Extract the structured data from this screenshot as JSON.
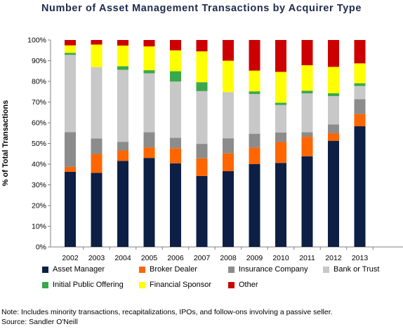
{
  "title": "Number of Asset Management Transactions by Acquirer Type",
  "note": "Note: Includes minority transactions, recapitalizations, IPOs, and follow-ons involving a passive seller.",
  "source": "Source: Sandler O'Neill",
  "chart_data": {
    "type": "bar",
    "stacked": true,
    "title": "Number of Asset Management Transactions by Acquirer Type",
    "xlabel": "",
    "ylabel": "% of Total Transactions",
    "ylim": [
      0,
      100
    ],
    "y_ticks": [
      "0%",
      "10%",
      "20%",
      "30%",
      "40%",
      "50%",
      "60%",
      "70%",
      "80%",
      "90%",
      "100%"
    ],
    "grid": false,
    "legend_position": "bottom",
    "categories": [
      "2002",
      "2003",
      "2004",
      "2005",
      "2006",
      "2007",
      "2008",
      "2009",
      "2010",
      "2011",
      "2012",
      "2013"
    ],
    "series": [
      {
        "name": "Asset Manager",
        "color": "#0d1f44",
        "values": [
          36.3,
          35.8,
          41.6,
          43.0,
          40.4,
          34.3,
          36.6,
          40.0,
          40.6,
          43.8,
          51.3,
          58.3
        ]
      },
      {
        "name": "Broker Dealer",
        "color": "#ff6600",
        "values": [
          2.4,
          9.1,
          5.0,
          5.1,
          7.3,
          8.5,
          8.6,
          8.0,
          10.1,
          9.4,
          3.6,
          5.9
        ]
      },
      {
        "name": "Insurance Company",
        "color": "#8c8c8c",
        "values": [
          16.8,
          7.5,
          4.2,
          7.3,
          5.0,
          7.0,
          7.3,
          6.7,
          4.6,
          2.2,
          4.3,
          7.2
        ]
      },
      {
        "name": "Bank or Trust",
        "color": "#c8c8c8",
        "values": [
          37.3,
          34.5,
          34.8,
          28.5,
          27.2,
          25.5,
          22.3,
          19.2,
          13.3,
          18.8,
          13.7,
          6.4
        ]
      },
      {
        "name": "Initial Public Offering",
        "color": "#3aa84a",
        "values": [
          1.0,
          0.0,
          1.7,
          1.5,
          5.0,
          4.3,
          0.0,
          1.3,
          1.1,
          1.3,
          1.4,
          1.3
        ]
      },
      {
        "name": "Financial Sponsor",
        "color": "#ffff00",
        "values": [
          3.6,
          10.9,
          10.0,
          11.5,
          10.1,
          14.9,
          15.2,
          10.0,
          14.9,
          12.3,
          12.7,
          9.6
        ]
      },
      {
        "name": "Other",
        "color": "#cc0000",
        "values": [
          2.6,
          2.2,
          2.7,
          3.1,
          5.0,
          5.5,
          10.0,
          14.8,
          15.4,
          12.2,
          13.0,
          11.3
        ]
      }
    ]
  }
}
